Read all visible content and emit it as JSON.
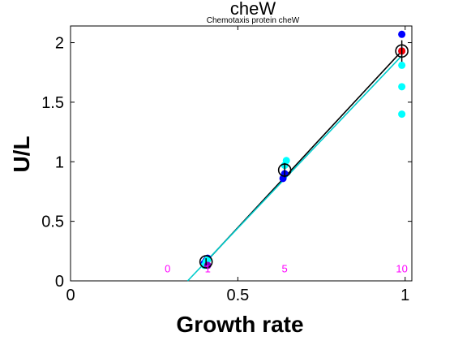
{
  "chart_data": {
    "type": "scatter",
    "title": "cheW",
    "subtitle": "Chemotaxis protein cheW",
    "xlabel": "Growth rate",
    "ylabel": "U/L",
    "xlim": [
      0,
      1.02
    ],
    "ylim": [
      0,
      2.14
    ],
    "xticks": [
      {
        "value": 0,
        "label": "0"
      },
      {
        "value": 0.5,
        "label": "0.5"
      },
      {
        "value": 1,
        "label": "1"
      }
    ],
    "yticks": [
      {
        "value": 0,
        "label": "0"
      },
      {
        "value": 0.5,
        "label": "0.5"
      },
      {
        "value": 1,
        "label": "1"
      },
      {
        "value": 1.5,
        "label": "1.5"
      },
      {
        "value": 2,
        "label": "2"
      }
    ],
    "grid": false,
    "annotations": [
      {
        "text": "0",
        "x": 0.29,
        "y": 0.1
      },
      {
        "text": "1",
        "x": 0.41,
        "y": 0.1
      },
      {
        "text": "5",
        "x": 0.64,
        "y": 0.1
      },
      {
        "text": "10",
        "x": 0.99,
        "y": 0.1
      }
    ],
    "series": [
      {
        "marker": "dot",
        "color": "#0000ff",
        "x": [
          0.4,
          0.405,
          0.41,
          0.635,
          0.64,
          0.99,
          0.99
        ],
        "y": [
          0.15,
          0.17,
          0.19,
          0.86,
          0.9,
          2.07,
          1.93
        ]
      },
      {
        "marker": "dot",
        "color": "#00ffff",
        "x": [
          0.4,
          0.405,
          0.41,
          0.64,
          0.645,
          0.99,
          0.99,
          0.99
        ],
        "y": [
          0.13,
          0.16,
          0.18,
          0.97,
          1.01,
          1.81,
          1.63,
          1.4
        ]
      },
      {
        "marker": "dot",
        "color": "#8800cc",
        "x": [
          0.41
        ],
        "y": [
          0.13
        ]
      },
      {
        "marker": "dot",
        "color": "#ff0000",
        "x": [
          0.99
        ],
        "y": [
          1.93
        ]
      },
      {
        "marker": "open-circle",
        "color": "#000000",
        "x": [
          0.405,
          0.64,
          0.99
        ],
        "y": [
          0.16,
          0.93,
          1.93
        ],
        "error": [
          0.03,
          0.06,
          0.09
        ]
      }
    ],
    "fit_lines": [
      {
        "color": "#000000",
        "x": [
          0.405,
          0.99
        ],
        "y": [
          0.16,
          1.93
        ]
      },
      {
        "color": "#00cccc",
        "x": [
          0.35,
          0.99
        ],
        "y": [
          0.0,
          1.89
        ]
      }
    ],
    "colors": {
      "annotation": "#ff00ff",
      "mean_marker": "#000000",
      "fit_line": "#000000",
      "cyan_line": "#00cccc"
    }
  }
}
